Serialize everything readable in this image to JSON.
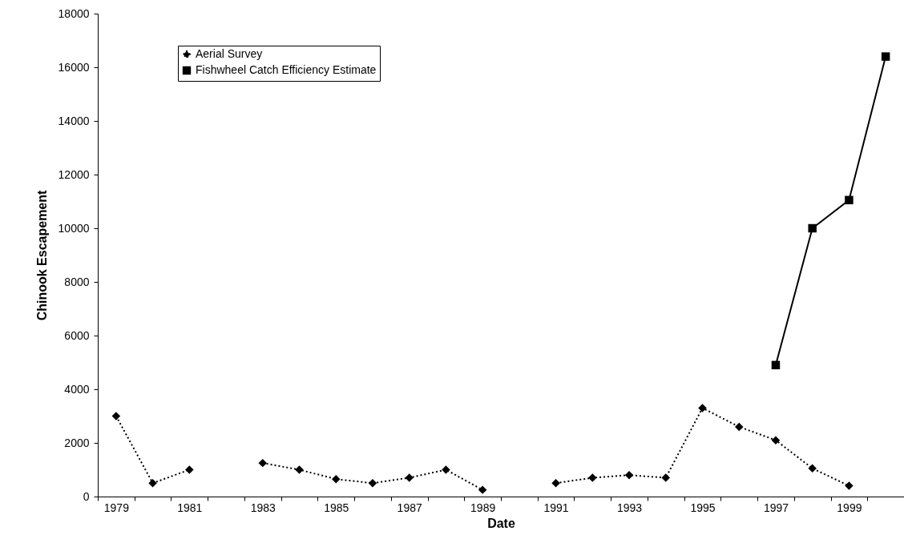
{
  "chart_data": {
    "type": "line",
    "xlabel": "Date",
    "ylabel": "Chinook Escapement",
    "categories": [
      "1979",
      null,
      "1981",
      null,
      "1983",
      null,
      "1985",
      null,
      "1987",
      null,
      "1989",
      null,
      "1991",
      null,
      "1993",
      null,
      "1995",
      null,
      "1997",
      null,
      "1999",
      null
    ],
    "series": [
      {
        "name": "Aerial Survey",
        "color": "#000000",
        "marker": "diamond",
        "line_style": "dotted",
        "values": [
          3000,
          500,
          1000,
          null,
          1250,
          1000,
          650,
          500,
          700,
          1000,
          250,
          null,
          500,
          700,
          800,
          700,
          3300,
          2600,
          2100,
          1050,
          400,
          null
        ]
      },
      {
        "name": "Fishwheel Catch Efficiency Estimate",
        "color": "#000000",
        "marker": "square",
        "line_style": "solid",
        "values": [
          null,
          null,
          null,
          null,
          null,
          null,
          null,
          null,
          null,
          null,
          null,
          null,
          null,
          null,
          null,
          null,
          null,
          null,
          4900,
          10000,
          11050,
          16400
        ]
      }
    ],
    "ylim": [
      0,
      18000
    ],
    "yticks": [
      0,
      2000,
      4000,
      6000,
      8000,
      10000,
      12000,
      14000,
      16000,
      18000
    ],
    "grid": false,
    "legend": "top left"
  }
}
